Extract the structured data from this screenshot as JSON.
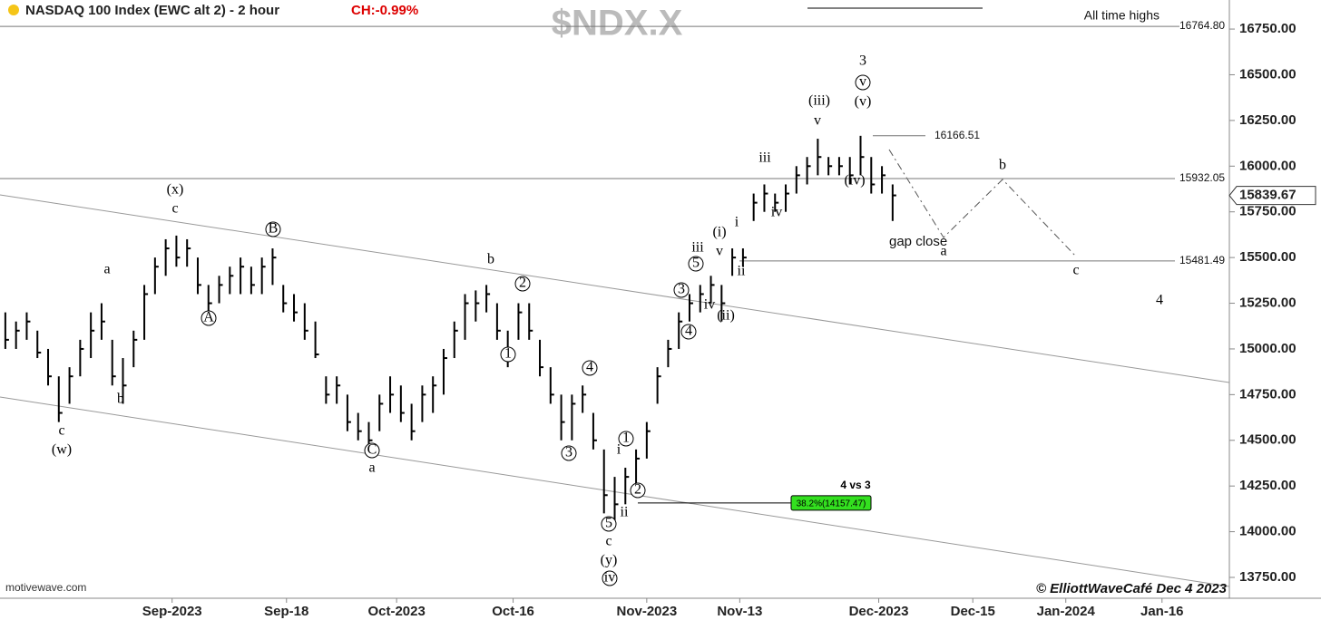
{
  "chart_data": {
    "type": "ohlc",
    "title": "NASDAQ 100 Index (EWC alt 2) - 2 hour",
    "change": "CH:-0.99%",
    "symbol": "$NDX.X",
    "source": "motivewave.com",
    "copyright": "© ElliottWaveCafé  Dec 4 2023",
    "color": "#000000",
    "ylim": [
      13636,
      16909
    ],
    "yticks": [
      {
        "value": 13750,
        "label": "13750.00"
      },
      {
        "value": 14000,
        "label": "14000.00"
      },
      {
        "value": 14250,
        "label": "14250.00"
      },
      {
        "value": 14500,
        "label": "14500.00"
      },
      {
        "value": 14750,
        "label": "14750.00"
      },
      {
        "value": 15000,
        "label": "15000.00"
      },
      {
        "value": 15250,
        "label": "15250.00"
      },
      {
        "value": 15500,
        "label": "15500.00"
      },
      {
        "value": 15750,
        "label": "15750.00"
      },
      {
        "value": 16000,
        "label": "16000.00"
      },
      {
        "value": 16250,
        "label": "16250.00"
      },
      {
        "value": 16500,
        "label": "16500.00"
      },
      {
        "value": 16750,
        "label": "16750.00"
      }
    ],
    "xlim": [
      0,
      115
    ],
    "xticks": [
      {
        "value": 16.1,
        "label": "Sep-2023"
      },
      {
        "value": 26.8,
        "label": "Sep-18"
      },
      {
        "value": 37.1,
        "label": "Oct-2023"
      },
      {
        "value": 48.0,
        "label": "Oct-16"
      },
      {
        "value": 60.5,
        "label": "Nov-2023"
      },
      {
        "value": 69.2,
        "label": "Nov-13"
      },
      {
        "value": 82.2,
        "label": "Dec-2023"
      },
      {
        "value": 91.0,
        "label": "Dec-15"
      },
      {
        "value": 99.7,
        "label": "Jan-2024"
      },
      {
        "value": 108.7,
        "label": "Jan-16"
      }
    ],
    "high": [
      15200,
      15150,
      15200,
      15100,
      15000,
      14850,
      14900,
      15050,
      15200,
      15250,
      15050,
      14950,
      15100,
      15350,
      15500,
      15600,
      15620,
      15600,
      15500,
      15350,
      15400,
      15450,
      15500,
      15450,
      15500,
      15550,
      15350,
      15300,
      15250,
      15150,
      14850,
      14850,
      14750,
      14650,
      14600,
      14750,
      14850,
      14800,
      14700,
      14800,
      14850,
      15000,
      15150,
      15300,
      15320,
      15350,
      15250,
      15100,
      15250,
      15250,
      15050,
      14900,
      14750,
      14750,
      14800,
      14650,
      14450,
      14300,
      14350,
      14450,
      14600,
      14900,
      15050,
      15200,
      15300,
      15350,
      15400,
      15350,
      15550,
      15550,
      15850,
      15900,
      15850,
      15900,
      16000,
      16050,
      16150,
      16050,
      16050,
      16050,
      16166,
      16050,
      16000,
      15900
    ],
    "low": [
      15000,
      15000,
      15050,
      14950,
      14800,
      14600,
      14700,
      14850,
      14950,
      15050,
      14800,
      14700,
      14900,
      15050,
      15300,
      15400,
      15450,
      15450,
      15300,
      15150,
      15250,
      15300,
      15300,
      15300,
      15300,
      15350,
      15200,
      15150,
      15050,
      14950,
      14700,
      14700,
      14550,
      14500,
      14450,
      14550,
      14650,
      14600,
      14500,
      14600,
      14650,
      14750,
      14950,
      15050,
      15150,
      15200,
      15050,
      14900,
      15050,
      15050,
      14850,
      14700,
      14500,
      14500,
      14650,
      14450,
      14100,
      14050,
      14150,
      14200,
      14400,
      14700,
      14900,
      15000,
      15150,
      15200,
      15250,
      15150,
      15400,
      15450,
      15700,
      15750,
      15750,
      15750,
      15850,
      15900,
      15950,
      15950,
      15950,
      15900,
      15950,
      15850,
      15850,
      15700
    ],
    "close": [
      15050,
      15100,
      15150,
      14980,
      14850,
      14650,
      14850,
      15000,
      15100,
      15150,
      14850,
      14800,
      15050,
      15300,
      15450,
      15550,
      15500,
      15550,
      15350,
      15250,
      15350,
      15400,
      15450,
      15350,
      15450,
      15500,
      15250,
      15200,
      15100,
      14970,
      14750,
      14800,
      14600,
      14550,
      14500,
      14700,
      14750,
      14650,
      14550,
      14750,
      14800,
      14950,
      15100,
      15250,
      15250,
      15300,
      15100,
      15000,
      15200,
      15100,
      14900,
      14750,
      14600,
      14700,
      14750,
      14500,
      14200,
      14150,
      14300,
      14400,
      14550,
      14850,
      15000,
      15150,
      15250,
      15300,
      15350,
      15250,
      15500,
      15500,
      15800,
      15850,
      15800,
      15850,
      15950,
      16000,
      16050,
      16000,
      16000,
      15950,
      16050,
      15900,
      15950,
      15840
    ],
    "levels": [
      {
        "value": 16764.8,
        "label": "16764.80",
        "note": "All time highs"
      },
      {
        "value": 16166.51,
        "label": "16166.51"
      },
      {
        "value": 15932.05,
        "label": "15932.05"
      },
      {
        "value": 15481.49,
        "label": "15481.49",
        "note": "gap close"
      }
    ],
    "last_price": {
      "value": 15839.67,
      "label": "15839.67"
    },
    "retracement": {
      "value": 14157.47,
      "label": "38.2%(14157.47)",
      "note": "4 vs 3"
    },
    "wave_labels": [
      "(x)",
      "c",
      "a",
      "b",
      "c",
      "(w)",
      "B",
      "A",
      "b",
      "2",
      "1",
      "C",
      "a",
      "4",
      "3",
      "1",
      "i",
      "2",
      "ii",
      "5",
      "c",
      "(y)",
      "iv",
      "5",
      "3",
      "iii",
      "v",
      "(i)",
      "i",
      "ii",
      "iv",
      "(ii)",
      "4",
      "iii",
      "iv",
      "(iii)",
      "v",
      "3",
      "v",
      "(v)",
      "(iv)",
      "b",
      "a",
      "c",
      "4"
    ]
  }
}
